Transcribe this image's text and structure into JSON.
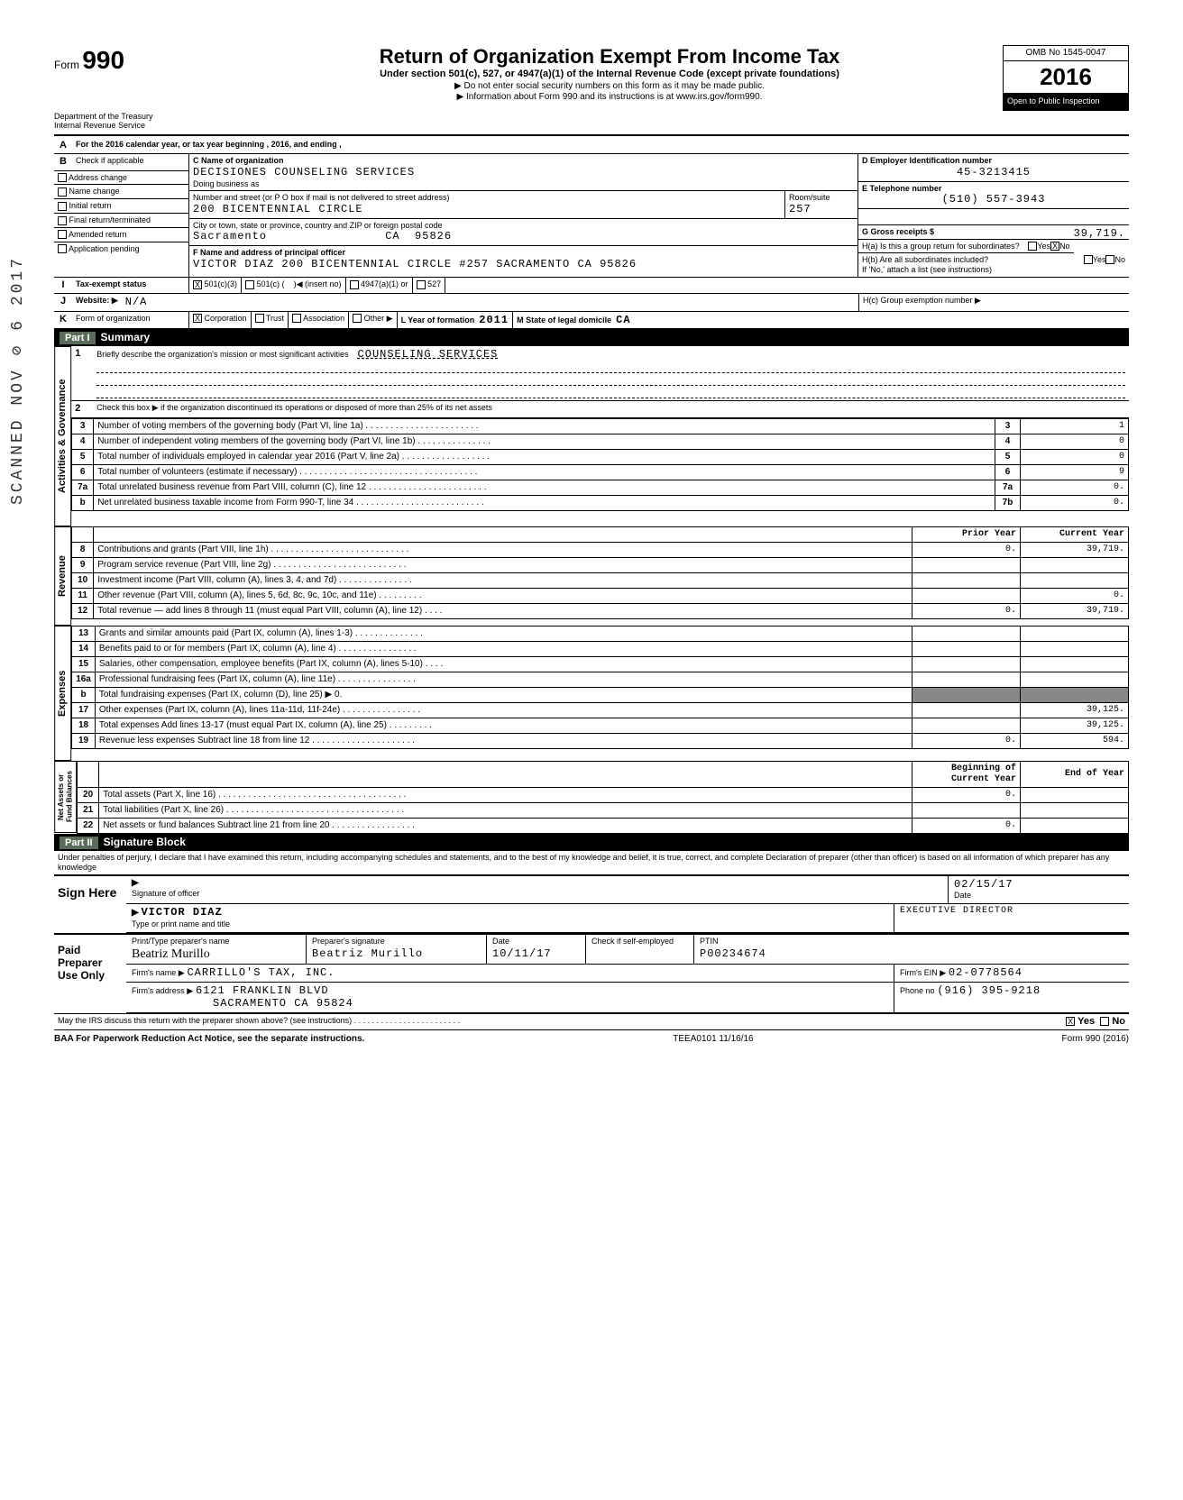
{
  "form": {
    "number_prefix": "Form",
    "number": "990",
    "omb": "OMB No 1545-0047",
    "year": "2016",
    "title": "Return of Organization Exempt From Income Tax",
    "subtitle": "Under section 501(c), 527, or 4947(a)(1) of the Internal Revenue Code (except private foundations)",
    "instr1": "▶ Do not enter social security numbers on this form as it may be made public.",
    "instr2": "▶ Information about Form 990 and its instructions is at www.irs.gov/form990.",
    "dept1": "Department of the Treasury",
    "dept2": "Internal Revenue Service",
    "open_inspection": "Open to Public Inspection"
  },
  "lineA": "For the 2016 calendar year, or tax year beginning                                , 2016, and ending                        ,",
  "checkB": {
    "label": "Check if applicable",
    "items": [
      "Address change",
      "Name change",
      "Initial return",
      "Final return/terminated",
      "Amended return",
      "Application pending"
    ]
  },
  "org": {
    "c_label": "C  Name of organization",
    "name": "DECISIONES COUNSELING SERVICES",
    "dba_label": "Doing business as",
    "addr_label": "Number and street (or P O box if mail is not delivered to street address)",
    "street": "200 BICENTENNIAL CIRCLE",
    "room_label": "Room/suite",
    "room": "257",
    "city_label": "City or town, state or province, country and ZIP or foreign postal code",
    "city": "Sacramento",
    "state": "CA",
    "zip": "95826",
    "f_label": "F  Name and address of principal officer",
    "officer": "VICTOR DIAZ 200 BICENTENNIAL CIRCLE #257 SACRAMENTO   CA 95826"
  },
  "D": {
    "label": "D  Employer Identification number",
    "value": "45-3213415"
  },
  "E": {
    "label": "E  Telephone number",
    "value": "(510) 557-3943"
  },
  "G": {
    "label": "G  Gross receipts $",
    "value": "39,719."
  },
  "H": {
    "a": "H(a) Is this a group return for subordinates?",
    "b": "H(b) Are all subordinates included?",
    "b2": "If 'No,' attach a list (see instructions)",
    "c": "H(c) Group exemption number ▶",
    "yes": "Yes",
    "no": "No",
    "no_checked": "X"
  },
  "I": {
    "label": "Tax-exempt status",
    "c3": "501(c)(3)",
    "c3_checked": "X",
    "c": "501(c) (",
    "c_tail": ")◀ (insert no)",
    "a1": "4947(a)(1) or",
    "527": "527"
  },
  "J": {
    "label": "Website: ▶",
    "value": "N/A"
  },
  "K": {
    "label": "Form of organization",
    "corp": "Corporation",
    "corp_checked": "X",
    "trust": "Trust",
    "assoc": "Association",
    "other": "Other ▶",
    "L": "L Year of formation",
    "L_val": "2011",
    "M": "M State of legal domicile",
    "M_val": "CA"
  },
  "part1": {
    "header_num": "Part I",
    "header": "Summary",
    "line1_label": "1",
    "line1": "Briefly describe the organization's mission or most significant activities",
    "line1_val": "COUNSELING SERVICES",
    "line2": "Check this box ▶        if the organization discontinued its operations or disposed of more than 25% of its net assets",
    "lines": [
      {
        "n": "3",
        "t": "Number of voting members of the governing body (Part VI, line 1a) . . . . . . . . . . . . . . . . . . . . . . .",
        "box": "3",
        "v": "1"
      },
      {
        "n": "4",
        "t": "Number of independent voting members of the governing body (Part VI, line 1b) . . . . . . . . . . . . . . .",
        "box": "4",
        "v": "0"
      },
      {
        "n": "5",
        "t": "Total number of individuals employed in calendar year 2016 (Part V, line 2a) . . . . . . . . . . . . . . . . . .",
        "box": "5",
        "v": "0"
      },
      {
        "n": "6",
        "t": "Total number of volunteers (estimate if necessary) . . . . . . . . . . . . . . . . . . . . . . . . . . . . . . . . . . . .",
        "box": "6",
        "v": "9"
      },
      {
        "n": "7a",
        "t": "Total unrelated business revenue from Part VIII, column (C), line 12 . . . . . . . . . . . . . . . . . . . . . . . .",
        "box": "7a",
        "v": "0."
      },
      {
        "n": "b",
        "t": "Net unrelated business taxable income from Form 990-T, line 34 . . . . . . . . . . . . . . . . . . . . . . . . . .",
        "box": "7b",
        "v": "0."
      }
    ],
    "col_prior": "Prior Year",
    "col_current": "Current Year",
    "rev": [
      {
        "n": "8",
        "t": "Contributions and grants (Part VIII, line 1h) . . . . . . . . . . . . . . . . . . . . . . . . . . . .",
        "p": "0.",
        "c": "39,719."
      },
      {
        "n": "9",
        "t": "Program service revenue (Part VIII, line 2g) . . . . . . . . . . . . . . . . . . . . . . . . . . .",
        "p": "",
        "c": ""
      },
      {
        "n": "10",
        "t": "Investment income (Part VIII, column (A), lines 3, 4, and 7d) . . . . . . . . . . . . . . .",
        "p": "",
        "c": ""
      },
      {
        "n": "11",
        "t": "Other revenue (Part VIII, column (A), lines 5, 6d, 8c, 9c, 10c, and 11e) . . . . . . . . .",
        "p": "",
        "c": "0."
      },
      {
        "n": "12",
        "t": "Total revenue — add lines 8 through 11 (must equal Part VIII, column (A), line 12) . . . .",
        "p": "0.",
        "c": "39,719."
      }
    ],
    "exp": [
      {
        "n": "13",
        "t": "Grants and similar amounts paid (Part IX, column (A), lines 1-3) . . . . . . . . . . . . . .",
        "p": "",
        "c": ""
      },
      {
        "n": "14",
        "t": "Benefits paid to or for members (Part IX, column (A), line 4) . . . . . . . . . . . . . . . .",
        "p": "",
        "c": ""
      },
      {
        "n": "15",
        "t": "Salaries, other compensation, employee benefits (Part IX, column (A), lines 5-10) . . . .",
        "p": "",
        "c": ""
      },
      {
        "n": "16a",
        "t": "Professional fundraising fees (Part IX, column (A), line 11e) . . . . . . . . . . . . . . . .",
        "p": "",
        "c": ""
      },
      {
        "n": "b",
        "t": "Total fundraising expenses (Part IX, column (D), line 25) ▶                    0.",
        "p": "",
        "c": "",
        "shade": true
      },
      {
        "n": "17",
        "t": "Other expenses (Part IX, column (A), lines 11a-11d, 11f-24e) . . . . . . . . . . . . . . . .",
        "p": "",
        "c": "39,125."
      },
      {
        "n": "18",
        "t": "Total expenses Add lines 13-17 (must equal Part IX, column (A), line 25) . . . . . . . . .",
        "p": "",
        "c": "39,125."
      },
      {
        "n": "19",
        "t": "Revenue less expenses Subtract line 18 from line 12 . . . . . . . . . . . . . . . . . . . . .",
        "p": "0.",
        "c": "594."
      }
    ],
    "col_begin": "Beginning of Current Year",
    "col_end": "End of Year",
    "net": [
      {
        "n": "20",
        "t": "Total assets (Part X, line 16) . . . . . . . . . . . . . . . . . . . . . . . . . . . . . . . . . . . . . .",
        "p": "0.",
        "c": ""
      },
      {
        "n": "21",
        "t": "Total liabilities (Part X, line 26) . . . . . . . . . . . . . . . . . . . . . . . . . . . . . . . . . . . .",
        "p": "",
        "c": ""
      },
      {
        "n": "22",
        "t": "Net assets or fund balances Subtract line 21 from line 20 . . . . . . . . . . . . . . . . .",
        "p": "0.",
        "c": ""
      }
    ],
    "vtab_gov": "Activities & Governance",
    "vtab_rev": "Revenue",
    "vtab_exp": "Expenses",
    "vtab_net": "Net Assets or Fund Balances"
  },
  "part2": {
    "header_num": "Part II",
    "header": "Signature Block",
    "perjury": "Under penalties of perjury, I declare that I have examined this return, including accompanying schedules and statements, and to the best of my knowledge and belief, it is true, correct, and complete Declaration of preparer (other than officer) is based on all information of which preparer has any knowledge",
    "sign_here": "Sign Here",
    "sig_officer_lbl": "Signature of officer",
    "date_lbl": "Date",
    "date": "02/15/17",
    "officer_name": "VICTOR DIAZ",
    "officer_title": "EXECUTIVE DIRECTOR",
    "name_title_lbl": "Type or print name and title",
    "paid": "Paid Preparer Use Only",
    "prep_name_lbl": "Print/Type preparer's name",
    "prep_name": "Beatriz Murillo",
    "prep_sig_lbl": "Preparer's signature",
    "prep_sig": "Beatriz Murillo",
    "prep_date": "10/11/17",
    "check_lbl": "Check        if self-employed",
    "ptin_lbl": "PTIN",
    "ptin": "P00234674",
    "firm_name_lbl": "Firm's name ▶",
    "firm_name": "CARRILLO'S TAX, INC.",
    "firm_addr_lbl": "Firm's address ▶",
    "firm_addr1": "6121 FRANKLIN BLVD",
    "firm_addr2": "SACRAMENTO                       CA    95824",
    "firm_ein_lbl": "Firm's EIN ▶",
    "firm_ein": "02-0778564",
    "phone_lbl": "Phone no",
    "phone": "(916) 395-9218",
    "discuss": "May the IRS discuss this return with the preparer shown above? (see instructions) . . . . . . . . . . . . . . . . . . . . . . . .",
    "discuss_yes": "X",
    "yes": "Yes",
    "no": "No"
  },
  "footer": {
    "baa": "BAA  For Paperwork Reduction Act Notice, see the separate instructions.",
    "teea": "TEEA0101 11/16/16",
    "formref": "Form 990 (2016)"
  },
  "stamp": "SCANNED NOV ⊘ 6 2017"
}
